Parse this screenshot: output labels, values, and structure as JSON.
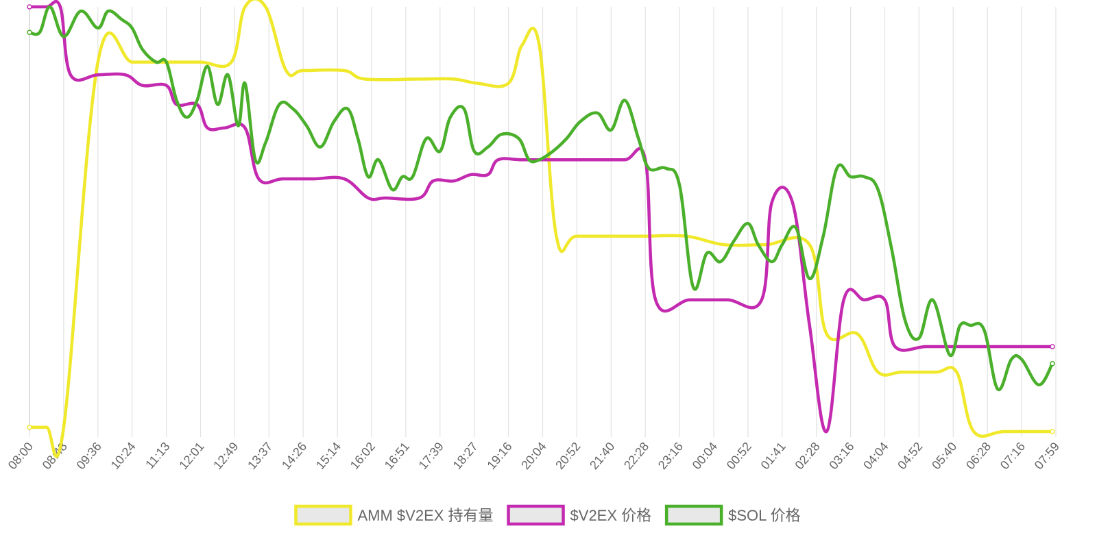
{
  "chart_data": {
    "type": "line",
    "title": "",
    "xlabel": "",
    "ylabel": "",
    "grid": "vertical",
    "legend_position": "bottom",
    "x_ticks": [
      "08:00",
      "08:48",
      "09:36",
      "10:24",
      "11:13",
      "12:01",
      "12:49",
      "13:37",
      "14:26",
      "15:14",
      "16:02",
      "16:51",
      "17:39",
      "18:27",
      "19:16",
      "20:04",
      "20:52",
      "21:40",
      "22:28",
      "23:16",
      "00:04",
      "00:52",
      "01:41",
      "02:28",
      "03:16",
      "04:04",
      "04:52",
      "05:40",
      "06:28",
      "07:16",
      "07:59"
    ],
    "ylim": [
      0,
      100
    ],
    "series": [
      {
        "name": "AMM $V2EX 持有量",
        "color": "#f0e82a",
        "points": [
          [
            0,
            1
          ],
          [
            0.5,
            1
          ],
          [
            1,
            1
          ],
          [
            2,
            87
          ],
          [
            3,
            87
          ],
          [
            4,
            87
          ],
          [
            5,
            87
          ],
          [
            5.9,
            87
          ],
          [
            6.3,
            100
          ],
          [
            6.9,
            100
          ],
          [
            7.5,
            85
          ],
          [
            8,
            85
          ],
          [
            9.2,
            85
          ],
          [
            9.8,
            83
          ],
          [
            11.4,
            83
          ],
          [
            12.4,
            83
          ],
          [
            13.1,
            82
          ],
          [
            14,
            82
          ],
          [
            14.4,
            91
          ],
          [
            14.9,
            91
          ],
          [
            15.4,
            46
          ],
          [
            16,
            46
          ],
          [
            17.5,
            46
          ],
          [
            18,
            46
          ],
          [
            19.2,
            46
          ],
          [
            20.3,
            44
          ],
          [
            21.5,
            44
          ],
          [
            22.8,
            44
          ],
          [
            23.3,
            23
          ],
          [
            24.2,
            23
          ],
          [
            24.8,
            14
          ],
          [
            25.5,
            14
          ],
          [
            26.5,
            14
          ],
          [
            27.1,
            14
          ],
          [
            27.6,
            0
          ],
          [
            28.5,
            0
          ],
          [
            29.9,
            0
          ]
        ]
      },
      {
        "name": "$V2EX 价格",
        "color": "#c32ab0",
        "points": [
          [
            0,
            100
          ],
          [
            0.5,
            100
          ],
          [
            0.9,
            100
          ],
          [
            1.2,
            84
          ],
          [
            2,
            84
          ],
          [
            2.8,
            84
          ],
          [
            3.3,
            81.5
          ],
          [
            4,
            81.5
          ],
          [
            4.3,
            77
          ],
          [
            4.9,
            77
          ],
          [
            5.2,
            71.5
          ],
          [
            5.7,
            71.5
          ],
          [
            6.3,
            71.5
          ],
          [
            6.7,
            59.5
          ],
          [
            7.4,
            59.5
          ],
          [
            8.3,
            59.5
          ],
          [
            9.2,
            59.5
          ],
          [
            9.9,
            55
          ],
          [
            10.4,
            55
          ],
          [
            11.4,
            55
          ],
          [
            11.8,
            59
          ],
          [
            12.4,
            59
          ],
          [
            12.9,
            60.5
          ],
          [
            13.4,
            60.5
          ],
          [
            13.7,
            64
          ],
          [
            14.4,
            64
          ],
          [
            15.4,
            64
          ],
          [
            16.4,
            64
          ],
          [
            17.4,
            64
          ],
          [
            18,
            64
          ],
          [
            18.3,
            31
          ],
          [
            19.3,
            31
          ],
          [
            20.4,
            31
          ],
          [
            21.4,
            31
          ],
          [
            21.7,
            54
          ],
          [
            22.3,
            54
          ],
          [
            22.8,
            25
          ],
          [
            23.3,
            0
          ],
          [
            23.8,
            31
          ],
          [
            24.4,
            31
          ],
          [
            25,
            31
          ],
          [
            25.3,
            20
          ],
          [
            26.2,
            20
          ],
          [
            27.1,
            20
          ],
          [
            28,
            20
          ],
          [
            29,
            20
          ],
          [
            29.9,
            20
          ]
        ]
      },
      {
        "name": "$SOL 价格",
        "color": "#4aaf2a",
        "points": [
          [
            0,
            94
          ],
          [
            0.3,
            94
          ],
          [
            0.6,
            100
          ],
          [
            1,
            93
          ],
          [
            1.5,
            99
          ],
          [
            2,
            95
          ],
          [
            2.3,
            99
          ],
          [
            2.7,
            97
          ],
          [
            3,
            95
          ],
          [
            3.3,
            90
          ],
          [
            3.7,
            87
          ],
          [
            4,
            87
          ],
          [
            4.3,
            78
          ],
          [
            4.6,
            74
          ],
          [
            4.9,
            78
          ],
          [
            5.2,
            86
          ],
          [
            5.5,
            77
          ],
          [
            5.8,
            84
          ],
          [
            6.1,
            72
          ],
          [
            6.3,
            82
          ],
          [
            6.6,
            64
          ],
          [
            6.9,
            68
          ],
          [
            7.3,
            77
          ],
          [
            7.7,
            76
          ],
          [
            8.1,
            72
          ],
          [
            8.5,
            67
          ],
          [
            8.9,
            73
          ],
          [
            9.3,
            76
          ],
          [
            9.6,
            69
          ],
          [
            9.9,
            60
          ],
          [
            10.2,
            64
          ],
          [
            10.6,
            57
          ],
          [
            10.9,
            60
          ],
          [
            11.2,
            60
          ],
          [
            11.6,
            69
          ],
          [
            12,
            66
          ],
          [
            12.3,
            74
          ],
          [
            12.7,
            76
          ],
          [
            13,
            66
          ],
          [
            13.4,
            67
          ],
          [
            13.8,
            70
          ],
          [
            14.3,
            69
          ],
          [
            14.6,
            64
          ],
          [
            14.9,
            64
          ],
          [
            15.3,
            66
          ],
          [
            15.7,
            69
          ],
          [
            16.1,
            73
          ],
          [
            16.6,
            75
          ],
          [
            17,
            71
          ],
          [
            17.4,
            78
          ],
          [
            17.8,
            69
          ],
          [
            18.1,
            62
          ],
          [
            18.6,
            62
          ],
          [
            19,
            58
          ],
          [
            19.4,
            34
          ],
          [
            19.8,
            42
          ],
          [
            20.2,
            40
          ],
          [
            20.6,
            45
          ],
          [
            21,
            49
          ],
          [
            21.3,
            44
          ],
          [
            21.7,
            40
          ],
          [
            22,
            44
          ],
          [
            22.4,
            48
          ],
          [
            22.8,
            36
          ],
          [
            23.2,
            46
          ],
          [
            23.6,
            62
          ],
          [
            24,
            60
          ],
          [
            24.4,
            60
          ],
          [
            24.8,
            57
          ],
          [
            25.2,
            43
          ],
          [
            25.6,
            26
          ],
          [
            26,
            22
          ],
          [
            26.4,
            31
          ],
          [
            26.9,
            18
          ],
          [
            27.2,
            25
          ],
          [
            27.5,
            25
          ],
          [
            27.9,
            24
          ],
          [
            28.3,
            10
          ],
          [
            28.7,
            17
          ],
          [
            29,
            17
          ],
          [
            29.5,
            11
          ],
          [
            29.9,
            16
          ]
        ]
      }
    ]
  }
}
